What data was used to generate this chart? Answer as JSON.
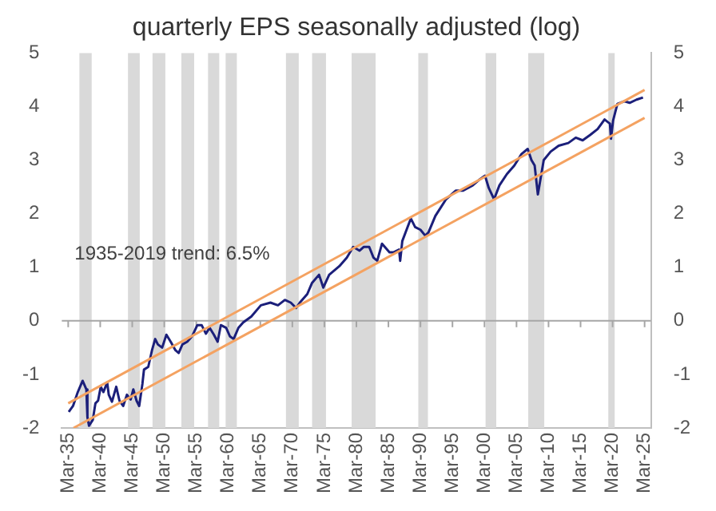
{
  "chart_data": {
    "type": "line",
    "title": "quarterly EPS seasonally adjusted (log)",
    "annotations": [
      "1935-2019 trend: 6.5%"
    ],
    "legend": false,
    "grid": false,
    "marker": "none",
    "line_style": "solid",
    "xlim": [
      "1934-03",
      "2026-03"
    ],
    "xticks": [
      {
        "value": "1935-03",
        "label": "Mar-35"
      },
      {
        "value": "1940-03",
        "label": "Mar-40"
      },
      {
        "value": "1945-03",
        "label": "Mar-45"
      },
      {
        "value": "1950-03",
        "label": "Mar-50"
      },
      {
        "value": "1955-03",
        "label": "Mar-55"
      },
      {
        "value": "1960-03",
        "label": "Mar-60"
      },
      {
        "value": "1965-03",
        "label": "Mar-65"
      },
      {
        "value": "1970-03",
        "label": "Mar-70"
      },
      {
        "value": "1975-03",
        "label": "Mar-75"
      },
      {
        "value": "1980-03",
        "label": "Mar-80"
      },
      {
        "value": "1985-03",
        "label": "Mar-85"
      },
      {
        "value": "1990-03",
        "label": "Mar-90"
      },
      {
        "value": "1995-03",
        "label": "Mar-95"
      },
      {
        "value": "2000-03",
        "label": "Mar-00"
      },
      {
        "value": "2005-03",
        "label": "Mar-05"
      },
      {
        "value": "2010-03",
        "label": "Mar-10"
      },
      {
        "value": "2015-03",
        "label": "Mar-15"
      },
      {
        "value": "2020-03",
        "label": "Mar-20"
      },
      {
        "value": "2025-03",
        "label": "Mar-25"
      }
    ],
    "ylim": [
      -2,
      5
    ],
    "yticks": [
      -2,
      -1,
      0,
      1,
      2,
      3,
      4,
      5
    ],
    "y2lim": [
      -2,
      5
    ],
    "y2ticks": [
      -2,
      -1,
      0,
      1,
      2,
      3,
      4,
      5
    ],
    "ref_lines": [
      {
        "axis": "y",
        "value": 0,
        "color": "#a6a6a6"
      }
    ],
    "bands": [
      {
        "axis": "x",
        "from": "1936-12",
        "to": "1938-11",
        "color": "#d9d9d9"
      },
      {
        "axis": "x",
        "from": "1944-07",
        "to": "1946-05",
        "color": "#d9d9d9"
      },
      {
        "axis": "x",
        "from": "1948-05",
        "to": "1950-05",
        "color": "#d9d9d9"
      },
      {
        "axis": "x",
        "from": "1952-11",
        "to": "1954-11",
        "color": "#d9d9d9"
      },
      {
        "axis": "x",
        "from": "1957-01",
        "to": "1958-10",
        "color": "#d9d9d9"
      },
      {
        "axis": "x",
        "from": "1959-10",
        "to": "1961-07",
        "color": "#d9d9d9"
      },
      {
        "axis": "x",
        "from": "1969-03",
        "to": "1971-03",
        "color": "#d9d9d9"
      },
      {
        "axis": "x",
        "from": "1973-04",
        "to": "1975-06",
        "color": "#d9d9d9"
      },
      {
        "axis": "x",
        "from": "1979-06",
        "to": "1983-03",
        "color": "#d9d9d9"
      },
      {
        "axis": "x",
        "from": "1989-11",
        "to": "1991-05",
        "color": "#d9d9d9"
      },
      {
        "axis": "x",
        "from": "2000-05",
        "to": "2002-01",
        "color": "#d9d9d9"
      },
      {
        "axis": "x",
        "from": "2007-01",
        "to": "2009-07",
        "color": "#d9d9d9"
      },
      {
        "axis": "x",
        "from": "2019-07",
        "to": "2020-07",
        "color": "#d9d9d9"
      }
    ],
    "series": [
      {
        "color": "#f4a261",
        "x": [
          "1935-03",
          "2025-03"
        ],
        "values": [
          -1.54,
          4.31
        ]
      },
      {
        "color": "#f4a261",
        "x": [
          "1936-01",
          "2025-03"
        ],
        "values": [
          -2.0,
          3.79
        ]
      },
      {
        "color": "#1b1f7a",
        "x": [
          "1935-04",
          "1935-12",
          "1936-09",
          "1937-06",
          "1938-01",
          "1938-03",
          "1938-06",
          "1939-01",
          "1939-06",
          "1939-11",
          "1940-04",
          "1940-09",
          "1941-04",
          "1941-07",
          "1942-01",
          "1942-09",
          "1943-03",
          "1943-10",
          "1944-05",
          "1944-12",
          "1945-05",
          "1945-11",
          "1946-04",
          "1946-10",
          "1947-01",
          "1947-09",
          "1948-04",
          "1948-10",
          "1949-03",
          "1949-11",
          "1950-07",
          "1951-03",
          "1951-12",
          "1952-06",
          "1953-01",
          "1953-10",
          "1954-07",
          "1955-05",
          "1956-01",
          "1956-09",
          "1957-04",
          "1957-12",
          "1958-07",
          "1959-01",
          "1959-11",
          "1960-06",
          "1961-01",
          "1961-10",
          "1962-07",
          "1963-10",
          "1965-04",
          "1966-10",
          "1967-12",
          "1969-01",
          "1969-12",
          "1970-10",
          "1971-05",
          "1972-07",
          "1973-04",
          "1974-05",
          "1975-01",
          "1975-12",
          "1977-07",
          "1978-09",
          "1979-09",
          "1980-09",
          "1981-05",
          "1982-03",
          "1982-11",
          "1983-06",
          "1984-03",
          "1985-05",
          "1986-01",
          "1986-11",
          "1987-01",
          "1987-05",
          "1988-01",
          "1988-09",
          "1989-05",
          "1990-03",
          "1990-12",
          "1991-06",
          "1992-07",
          "1994-03",
          "1995-09",
          "1996-11",
          "1998-05",
          "1999-06",
          "2000-04",
          "2000-11",
          "2001-09",
          "2002-07",
          "2003-09",
          "2004-11",
          "2005-12",
          "2006-12",
          "2007-07",
          "2008-01",
          "2008-07",
          "2008-11",
          "2009-06",
          "2010-07",
          "2011-10",
          "2013-04",
          "2014-06",
          "2015-07",
          "2016-09",
          "2017-11",
          "2018-12",
          "2019-10",
          "2019-12",
          "2020-04",
          "2020-12",
          "2022-01",
          "2022-11",
          "2023-12",
          "2024-12"
        ],
        "values": [
          -1.7,
          -1.59,
          -1.33,
          -1.12,
          -1.28,
          -1.8,
          -1.96,
          -1.85,
          -1.54,
          -1.49,
          -1.23,
          -1.33,
          -1.15,
          -1.38,
          -1.51,
          -1.23,
          -1.49,
          -1.59,
          -1.38,
          -1.47,
          -1.28,
          -1.49,
          -1.59,
          -1.18,
          -0.91,
          -0.86,
          -0.55,
          -0.34,
          -0.44,
          -0.5,
          -0.26,
          -0.39,
          -0.55,
          -0.6,
          -0.44,
          -0.39,
          -0.29,
          -0.08,
          -0.08,
          -0.24,
          -0.13,
          -0.26,
          -0.39,
          -0.08,
          -0.13,
          -0.29,
          -0.34,
          -0.13,
          -0.03,
          0.08,
          0.29,
          0.34,
          0.29,
          0.39,
          0.34,
          0.24,
          0.34,
          0.5,
          0.71,
          0.86,
          0.62,
          0.86,
          1.02,
          1.18,
          1.38,
          1.31,
          1.38,
          1.38,
          1.18,
          1.12,
          1.44,
          1.28,
          1.28,
          1.33,
          1.12,
          1.49,
          1.7,
          1.91,
          1.75,
          1.7,
          1.59,
          1.65,
          1.96,
          2.27,
          2.43,
          2.43,
          2.53,
          2.64,
          2.71,
          2.48,
          2.27,
          2.53,
          2.74,
          2.9,
          3.11,
          3.21,
          3.0,
          2.9,
          2.36,
          2.59,
          3.0,
          3.16,
          3.27,
          3.32,
          3.42,
          3.37,
          3.47,
          3.58,
          3.76,
          3.68,
          3.4,
          3.74,
          4.05,
          4.1,
          4.07,
          4.13,
          4.17
        ]
      }
    ]
  }
}
